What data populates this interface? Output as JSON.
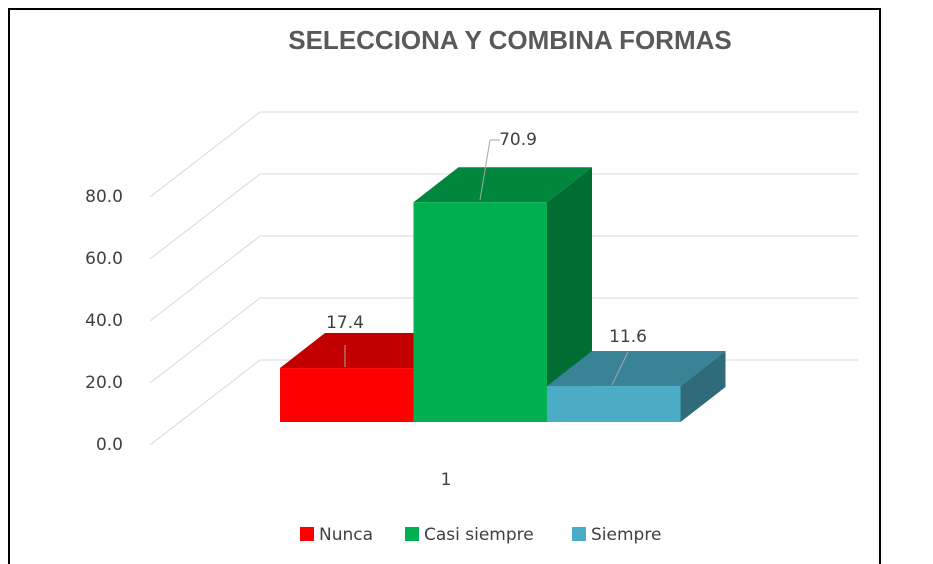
{
  "chart_data": {
    "type": "bar3d",
    "title": "SELECCIONA Y COMBINA FORMAS",
    "categories": [
      "1"
    ],
    "series": [
      {
        "name": "Nunca",
        "color": "#ff0000",
        "values": [
          17.4
        ]
      },
      {
        "name": "Casi siempre",
        "color": "#00b050",
        "values": [
          70.9
        ]
      },
      {
        "name": "Siempre",
        "color": "#4bacc6",
        "values": [
          11.6
        ]
      }
    ],
    "ylim": [
      0,
      80
    ],
    "yticks": [
      {
        "value": 0,
        "label": "0.0"
      },
      {
        "value": 20,
        "label": "20.0"
      },
      {
        "value": 40,
        "label": "40.0"
      },
      {
        "value": 60,
        "label": "60.0"
      },
      {
        "value": 80,
        "label": "80.0"
      }
    ],
    "grid": true,
    "legend": "bottom"
  }
}
